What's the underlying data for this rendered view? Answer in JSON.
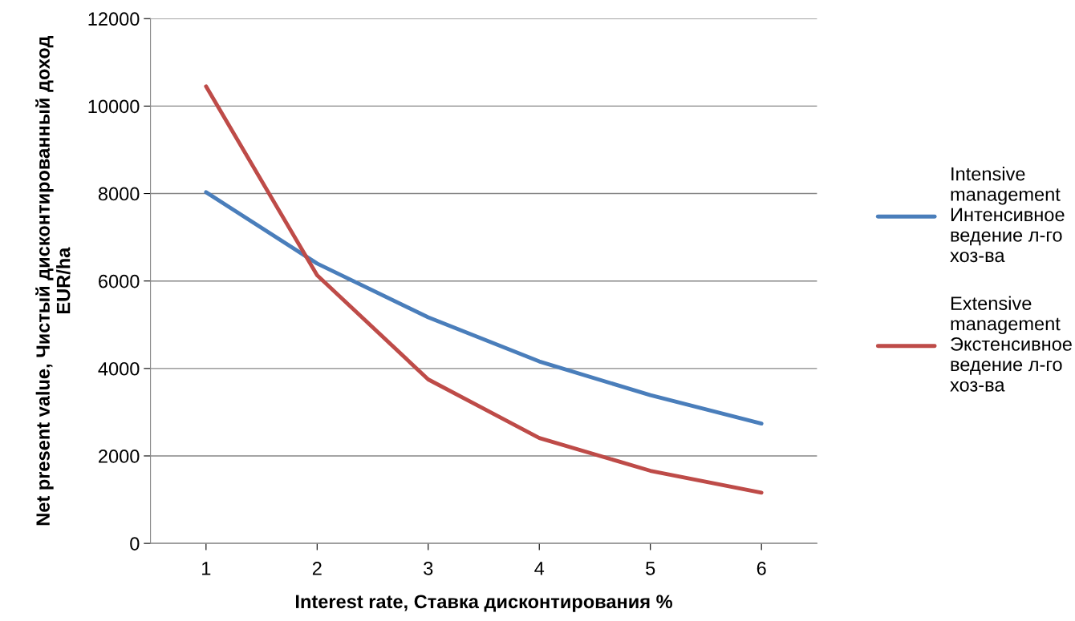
{
  "chart_data": {
    "type": "line",
    "xlabel": "Interest rate, Ставка дисконтирования %",
    "ylabel": "Net present value, Чистый дисконтированный доход\nEUR/ha",
    "categories": [
      "1",
      "2",
      "3",
      "4",
      "5",
      "6"
    ],
    "series": [
      {
        "name": "Intensive\nmanagement\nИнтенсивное\nведение л-го\nхоз-ва",
        "color": "#4a7ebb",
        "values": [
          8030,
          6400,
          5170,
          4160,
          3390,
          2740
        ]
      },
      {
        "name": "Extensive\nmanagement\nЭкстенсивное\nведение л-го\nхоз-ва",
        "color": "#be4b48",
        "values": [
          10450,
          6130,
          3750,
          2410,
          1660,
          1160
        ]
      }
    ],
    "ylim": [
      0,
      12000
    ],
    "yticks": [
      0,
      2000,
      4000,
      6000,
      8000,
      10000,
      12000
    ],
    "grid": "y",
    "legend": "right",
    "marker": "none",
    "line_style": "solid"
  }
}
